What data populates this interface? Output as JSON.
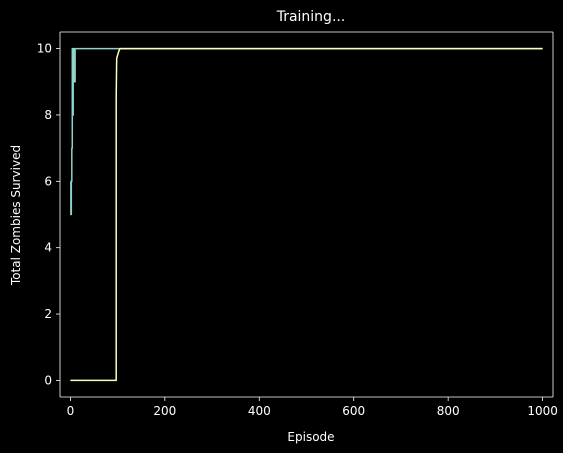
{
  "chart_data": {
    "type": "line",
    "title": "Training...",
    "xlabel": "Episode",
    "ylabel": "Total Zombies Survived",
    "xlim": [
      -22,
      1022
    ],
    "ylim": [
      -0.5,
      10.5
    ],
    "xticks": [
      0,
      200,
      400,
      600,
      800,
      1000
    ],
    "yticks": [
      0,
      2,
      4,
      6,
      8,
      10
    ],
    "grid": false,
    "background": "#000000",
    "foreground": "#ffffff",
    "series": [
      {
        "color": "#8dd3c7",
        "x": [
          0,
          1,
          1,
          2,
          2,
          3,
          3,
          4,
          4,
          5,
          5,
          6,
          6,
          7,
          7,
          8,
          8,
          9,
          9,
          10,
          10,
          1000
        ],
        "y": [
          6,
          6,
          5,
          5,
          6,
          6,
          7,
          7,
          10,
          10,
          8,
          8,
          10,
          10,
          9,
          9,
          10,
          10,
          9,
          9,
          10,
          10
        ]
      },
      {
        "color": "#ffffb3",
        "x": [
          0,
          97,
          97,
          98,
          100,
          102,
          105,
          110,
          1000
        ],
        "y": [
          0,
          0,
          8.5,
          9.7,
          9.8,
          9.9,
          10,
          10,
          10
        ]
      }
    ]
  }
}
